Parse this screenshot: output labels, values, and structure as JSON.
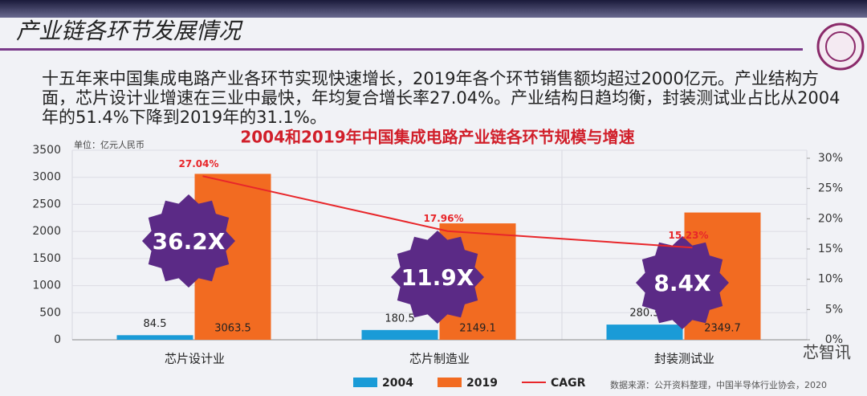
{
  "header": {
    "title": "产业链各环节发展情况"
  },
  "paragraph": "十五年来中国集成电路产业各环节实现快速增长，2019年各个环节销售额均超过2000亿元。产业结构方面，芯片设计业增速在三业中最快，年均复合增长率27.04%。产业结构日趋均衡，封装测试业占比从2004年的51.4%下降到2019年的31.1%。",
  "chart_data": {
    "type": "bar",
    "title": "2004和2019年中国集成电路产业链各环节规模与增速",
    "unit": "单位：亿元人民币",
    "categories": [
      "芯片设计业",
      "芯片制造业",
      "封装测试业"
    ],
    "series": [
      {
        "name": "2004",
        "color": "#1a9bd7",
        "values": [
          84.5,
          180.5,
          280.3
        ]
      },
      {
        "name": "2019",
        "color": "#f26b21",
        "values": [
          3063.5,
          2149.1,
          2349.7
        ]
      },
      {
        "name": "CAGR",
        "color": "#e8262a",
        "type": "line",
        "axis": "y2",
        "values": [
          27.04,
          17.96,
          15.23
        ],
        "value_labels": [
          "27.04%",
          "17.96%",
          "15.23%"
        ]
      }
    ],
    "annotations": [
      "36.2X",
      "11.9X",
      "8.4X"
    ],
    "ylim": [
      0,
      3500
    ],
    "yticks": [
      0,
      500,
      1000,
      1500,
      2000,
      2500,
      3000,
      3500
    ],
    "y2lim": [
      0,
      30
    ],
    "y2ticks": [
      {
        "value": 0,
        "label": "0%"
      },
      {
        "value": 5,
        "label": "5%"
      },
      {
        "value": 10,
        "label": "10%"
      },
      {
        "value": 15,
        "label": "15%"
      },
      {
        "value": 20,
        "label": "20%"
      },
      {
        "value": 25,
        "label": "25%"
      },
      {
        "value": 30,
        "label": "30%"
      }
    ],
    "grid": true,
    "legend": "bottom",
    "source": "数据来源：公开资料整理，中国半导体行业协会，2020"
  },
  "watermark": "芯智讯"
}
